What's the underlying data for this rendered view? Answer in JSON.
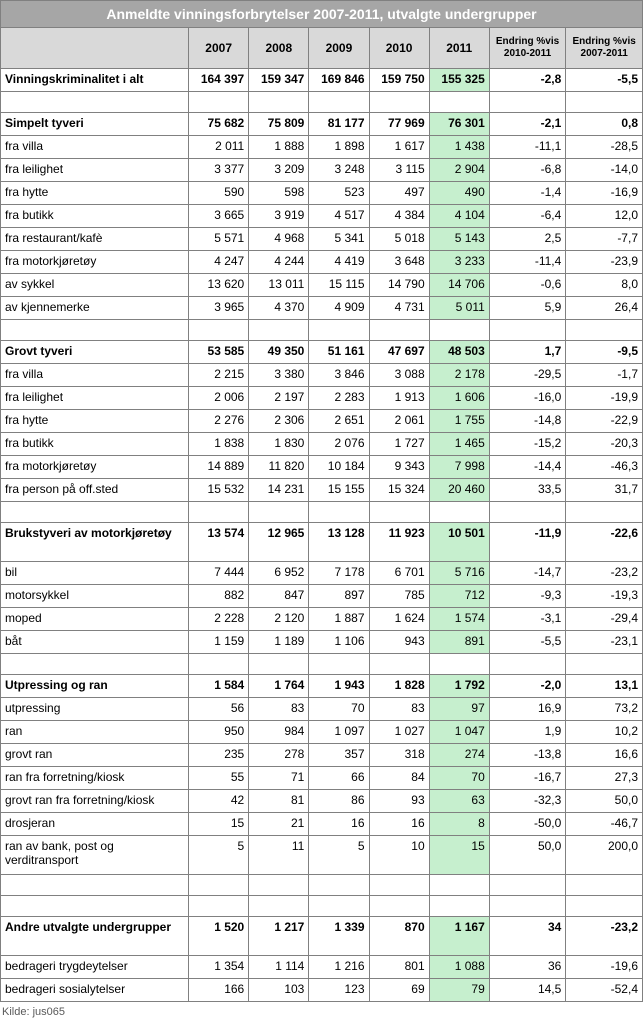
{
  "title": "Anmeldte vinningsforbrytelser 2007-2011, utvalgte undergrupper",
  "headers": {
    "blank": "",
    "y2007": "2007",
    "y2008": "2008",
    "y2009": "2009",
    "y2010": "2010",
    "y2011": "2011",
    "chg1": "Endring %vis 2010-2011",
    "chg2": "Endring %vis 2007-2011"
  },
  "rows": [
    {
      "type": "total",
      "label": "Vinningskriminalitet i alt",
      "v": [
        "164 397",
        "159 347",
        "169 846",
        "159 750",
        "155 325",
        "-2,8",
        "-5,5"
      ],
      "hl": true
    },
    {
      "type": "empty"
    },
    {
      "type": "section",
      "label": "Simpelt tyveri",
      "v": [
        "75 682",
        "75 809",
        "81 177",
        "77 969",
        "76 301",
        "-2,1",
        "0,8"
      ],
      "hl": true
    },
    {
      "type": "row",
      "label": "fra villa",
      "v": [
        "2 011",
        "1 888",
        "1 898",
        "1 617",
        "1 438",
        "-11,1",
        "-28,5"
      ],
      "hl": true
    },
    {
      "type": "row",
      "label": "fra leilighet",
      "v": [
        "3 377",
        "3 209",
        "3 248",
        "3 115",
        "2 904",
        "-6,8",
        "-14,0"
      ],
      "hl": true
    },
    {
      "type": "row",
      "label": "fra hytte",
      "v": [
        "590",
        "598",
        "523",
        "497",
        "490",
        "-1,4",
        "-16,9"
      ],
      "hl": true
    },
    {
      "type": "row",
      "label": "fra butikk",
      "v": [
        "3 665",
        "3 919",
        "4 517",
        "4 384",
        "4 104",
        "-6,4",
        "12,0"
      ],
      "hl": true
    },
    {
      "type": "row",
      "label": "fra restaurant/kafè",
      "v": [
        "5 571",
        "4 968",
        "5 341",
        "5 018",
        "5 143",
        "2,5",
        "-7,7"
      ],
      "hl": true
    },
    {
      "type": "row",
      "label": "fra motorkjøretøy",
      "v": [
        "4 247",
        "4 244",
        "4 419",
        "3 648",
        "3 233",
        "-11,4",
        "-23,9"
      ],
      "hl": true
    },
    {
      "type": "row",
      "label": "av sykkel",
      "v": [
        "13 620",
        "13 011",
        "15 115",
        "14 790",
        "14 706",
        "-0,6",
        "8,0"
      ],
      "hl": true
    },
    {
      "type": "row",
      "label": "av kjennemerke",
      "v": [
        "3 965",
        "4 370",
        "4 909",
        "4 731",
        "5 011",
        "5,9",
        "26,4"
      ],
      "hl": true
    },
    {
      "type": "empty"
    },
    {
      "type": "section",
      "label": "Grovt tyveri",
      "v": [
        "53 585",
        "49 350",
        "51 161",
        "47 697",
        "48 503",
        "1,7",
        "-9,5"
      ],
      "hl": true
    },
    {
      "type": "row",
      "label": "fra villa",
      "v": [
        "2 215",
        "3 380",
        "3 846",
        "3 088",
        "2 178",
        "-29,5",
        "-1,7"
      ],
      "hl": true
    },
    {
      "type": "row",
      "label": "fra leilighet",
      "v": [
        "2 006",
        "2 197",
        "2 283",
        "1 913",
        "1 606",
        "-16,0",
        "-19,9"
      ],
      "hl": true
    },
    {
      "type": "row",
      "label": "fra hytte",
      "v": [
        "2 276",
        "2 306",
        "2 651",
        "2 061",
        "1 755",
        "-14,8",
        "-22,9"
      ],
      "hl": true
    },
    {
      "type": "row",
      "label": "fra butikk",
      "v": [
        "1 838",
        "1 830",
        "2 076",
        "1 727",
        "1 465",
        "-15,2",
        "-20,3"
      ],
      "hl": true
    },
    {
      "type": "row",
      "label": "fra motorkjøretøy",
      "v": [
        "14 889",
        "11 820",
        "10 184",
        "9 343",
        "7 998",
        "-14,4",
        "-46,3"
      ],
      "hl": true
    },
    {
      "type": "row",
      "label": "fra person på off.sted",
      "v": [
        "15 532",
        "14 231",
        "15 155",
        "15 324",
        "20 460",
        "33,5",
        "31,7"
      ],
      "hl": true
    },
    {
      "type": "empty"
    },
    {
      "type": "section",
      "label": "Brukstyveri av motorkjøretøy",
      "v": [
        "13 574",
        "12 965",
        "13 128",
        "11 923",
        "10 501",
        "-11,9",
        "-22,6"
      ],
      "hl": true,
      "tall": true
    },
    {
      "type": "row",
      "label": "bil",
      "v": [
        "7 444",
        "6 952",
        "7 178",
        "6 701",
        "5 716",
        "-14,7",
        "-23,2"
      ],
      "hl": true
    },
    {
      "type": "row",
      "label": "motorsykkel",
      "v": [
        "882",
        "847",
        "897",
        "785",
        "712",
        "-9,3",
        "-19,3"
      ],
      "hl": true
    },
    {
      "type": "row",
      "label": "moped",
      "v": [
        "2 228",
        "2 120",
        "1 887",
        "1 624",
        "1 574",
        "-3,1",
        "-29,4"
      ],
      "hl": true
    },
    {
      "type": "row",
      "label": "båt",
      "v": [
        "1 159",
        "1 189",
        "1 106",
        "943",
        "891",
        "-5,5",
        "-23,1"
      ],
      "hl": true
    },
    {
      "type": "empty"
    },
    {
      "type": "section",
      "label": "Utpressing og ran",
      "v": [
        "1 584",
        "1 764",
        "1 943",
        "1 828",
        "1 792",
        "-2,0",
        "13,1"
      ],
      "hl": true
    },
    {
      "type": "row",
      "label": "utpressing",
      "v": [
        "56",
        "83",
        "70",
        "83",
        "97",
        "16,9",
        "73,2"
      ],
      "hl": true
    },
    {
      "type": "row",
      "label": "ran",
      "v": [
        "950",
        "984",
        "1 097",
        "1 027",
        "1 047",
        "1,9",
        "10,2"
      ],
      "hl": true
    },
    {
      "type": "row",
      "label": "grovt ran",
      "v": [
        "235",
        "278",
        "357",
        "318",
        "274",
        "-13,8",
        "16,6"
      ],
      "hl": true
    },
    {
      "type": "row",
      "label": "ran fra forretning/kiosk",
      "v": [
        "55",
        "71",
        "66",
        "84",
        "70",
        "-16,7",
        "27,3"
      ],
      "hl": true
    },
    {
      "type": "row",
      "label": "grovt ran fra forretning/kiosk",
      "v": [
        "42",
        "81",
        "86",
        "93",
        "63",
        "-32,3",
        "50,0"
      ],
      "hl": true
    },
    {
      "type": "row",
      "label": "drosjeran",
      "v": [
        "15",
        "21",
        "16",
        "16",
        "8",
        "-50,0",
        "-46,7"
      ],
      "hl": true
    },
    {
      "type": "row",
      "label": "ran av bank, post og verditransport",
      "v": [
        "5",
        "11",
        "5",
        "10",
        "15",
        "50,0",
        "200,0"
      ],
      "hl": true,
      "tall": true
    },
    {
      "type": "empty"
    },
    {
      "type": "empty"
    },
    {
      "type": "section",
      "label": "Andre utvalgte undergrupper",
      "v": [
        "1 520",
        "1 217",
        "1 339",
        "870",
        "1 167",
        "34",
        "-23,2"
      ],
      "hl": true,
      "tall": true
    },
    {
      "type": "row",
      "label": "bedrageri trygdeytelser",
      "v": [
        "1 354",
        "1 114",
        "1 216",
        "801",
        "1 088",
        "36",
        "-19,6"
      ],
      "hl": true
    },
    {
      "type": "row",
      "label": "bedrageri sosialytelser",
      "v": [
        "166",
        "103",
        "123",
        "69",
        "79",
        "14,5",
        "-52,4"
      ],
      "hl": true
    }
  ],
  "source": "Kilde: jus065"
}
